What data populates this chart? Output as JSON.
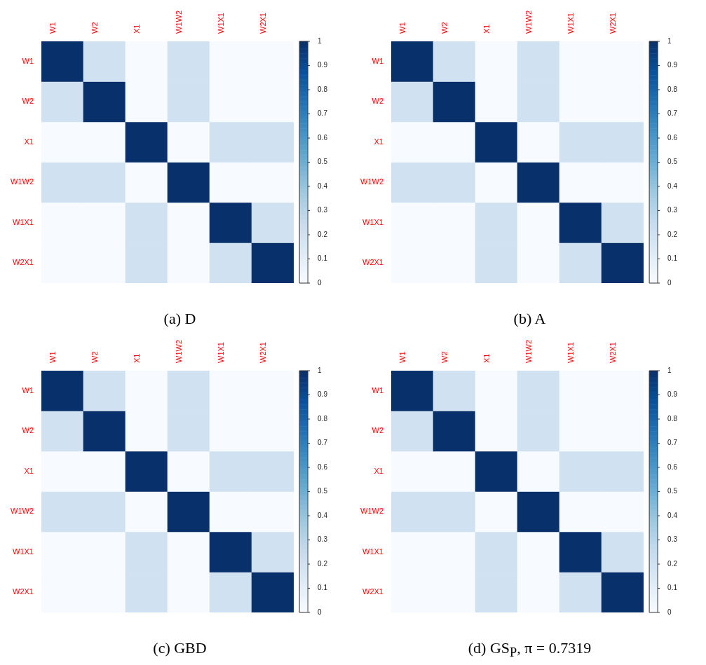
{
  "chart_data": [
    {
      "type": "heatmap",
      "title": "(a) D",
      "categories": [
        "W1",
        "W2",
        "X1",
        "W1W2",
        "W1X1",
        "W2X1"
      ],
      "y_categories": [
        "W1",
        "W2",
        "X1",
        "W1W2",
        "W1X1",
        "W2X1"
      ],
      "cells": [
        [
          1,
          0.2,
          0,
          0.2,
          0,
          0
        ],
        [
          0.2,
          1,
          0,
          0.2,
          0,
          0
        ],
        [
          0,
          0,
          1,
          0,
          0.2,
          0.2
        ],
        [
          0.2,
          0.2,
          0,
          1,
          0,
          0
        ],
        [
          0,
          0,
          0.2,
          0,
          1,
          0.2
        ],
        [
          0,
          0,
          0.2,
          0,
          0.2,
          1
        ]
      ],
      "clim": [
        0,
        1
      ],
      "cticks": [
        0,
        0.1,
        0.2,
        0.3,
        0.4,
        0.5,
        0.6,
        0.7,
        0.8,
        0.9,
        1
      ]
    },
    {
      "type": "heatmap",
      "title": "(b) A",
      "categories": [
        "W1",
        "W2",
        "X1",
        "W1W2",
        "W1X1",
        "W2X1"
      ],
      "y_categories": [
        "W1",
        "W2",
        "X1",
        "W1W2",
        "W1X1",
        "W2X1"
      ],
      "cells": [
        [
          1,
          0.2,
          0,
          0.2,
          0,
          0
        ],
        [
          0.2,
          1,
          0,
          0.2,
          0,
          0
        ],
        [
          0,
          0,
          1,
          0,
          0.2,
          0.2
        ],
        [
          0.2,
          0.2,
          0,
          1,
          0,
          0
        ],
        [
          0,
          0,
          0.2,
          0,
          1,
          0.2
        ],
        [
          0,
          0,
          0.2,
          0,
          0.2,
          1
        ]
      ],
      "clim": [
        0,
        1
      ],
      "cticks": [
        0,
        0.1,
        0.2,
        0.3,
        0.4,
        0.5,
        0.6,
        0.7,
        0.8,
        0.9,
        1
      ]
    },
    {
      "type": "heatmap",
      "title": "(c) GBD",
      "categories": [
        "W1",
        "W2",
        "X1",
        "W1W2",
        "W1X1",
        "W2X1"
      ],
      "y_categories": [
        "W1",
        "W2",
        "X1",
        "W1W2",
        "W1X1",
        "W2X1"
      ],
      "cells": [
        [
          1,
          0.2,
          0,
          0.2,
          0,
          0
        ],
        [
          0.2,
          1,
          0,
          0.2,
          0,
          0
        ],
        [
          0,
          0,
          1,
          0,
          0.2,
          0.2
        ],
        [
          0.2,
          0.2,
          0,
          1,
          0,
          0
        ],
        [
          0,
          0,
          0.2,
          0,
          1,
          0.2
        ],
        [
          0,
          0,
          0.2,
          0,
          0.2,
          1
        ]
      ],
      "clim": [
        0,
        1
      ],
      "cticks": [
        0,
        0.1,
        0.2,
        0.3,
        0.4,
        0.5,
        0.6,
        0.7,
        0.8,
        0.9,
        1
      ]
    },
    {
      "type": "heatmap",
      "title": "(d) GS$_{P}$, π = 0.7319",
      "categories": [
        "W1",
        "W2",
        "X1",
        "W1W2",
        "W1X1",
        "W2X1"
      ],
      "y_categories": [
        "W1",
        "W2",
        "X1",
        "W1W2",
        "W1X1",
        "W2X1"
      ],
      "cells": [
        [
          1,
          0.2,
          0,
          0.2,
          0,
          0
        ],
        [
          0.2,
          1,
          0,
          0.2,
          0,
          0
        ],
        [
          0,
          0,
          1,
          0,
          0.2,
          0.2
        ],
        [
          0.2,
          0.2,
          0,
          1,
          0,
          0
        ],
        [
          0,
          0,
          0.2,
          0,
          1,
          0.2
        ],
        [
          0,
          0,
          0.2,
          0,
          0.2,
          1
        ]
      ],
      "clim": [
        0,
        1
      ],
      "cticks": [
        0,
        0.1,
        0.2,
        0.3,
        0.4,
        0.5,
        0.6,
        0.7,
        0.8,
        0.9,
        1
      ]
    }
  ]
}
